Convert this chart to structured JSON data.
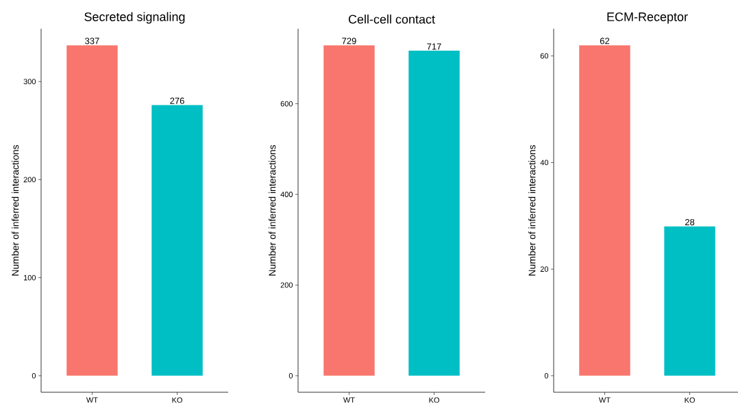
{
  "chart_data": [
    {
      "type": "bar",
      "title": "Secreted signaling",
      "ylabel": "Number of inferred interactions",
      "categories": [
        "WT",
        "KO"
      ],
      "values": [
        337,
        276
      ],
      "colors": [
        "#f8766d",
        "#00bfc4"
      ],
      "ylim": [
        -16.85,
        353.85
      ],
      "yticks": [
        0,
        100,
        200,
        300
      ],
      "data_labels": true
    },
    {
      "type": "bar",
      "title": "Cell-cell contact",
      "ylabel": "Number of inferred interactions",
      "categories": [
        "WT",
        "KO"
      ],
      "values": [
        729,
        717
      ],
      "colors": [
        "#f8766d",
        "#00bfc4"
      ],
      "ylim": [
        -36.45,
        765.45
      ],
      "yticks": [
        0,
        200,
        400,
        600
      ],
      "data_labels": true
    },
    {
      "type": "bar",
      "title": "ECM-Receptor",
      "ylabel": "Number of inferred interactions",
      "categories": [
        "WT",
        "KO"
      ],
      "values": [
        62,
        28
      ],
      "colors": [
        "#f8766d",
        "#00bfc4"
      ],
      "ylim": [
        -3.1,
        65.1
      ],
      "yticks": [
        0,
        20,
        40,
        60
      ],
      "data_labels": true
    }
  ]
}
